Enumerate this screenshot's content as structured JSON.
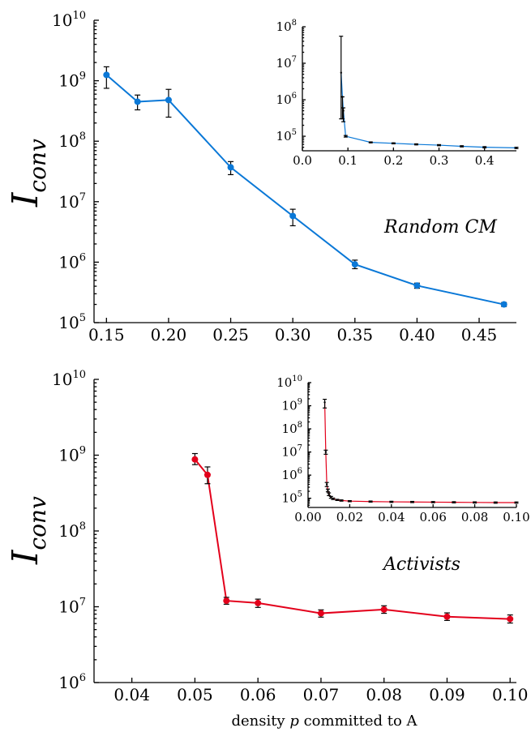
{
  "figure": {
    "xlabel_prefix": "density ",
    "xlabel_var": "p",
    "xlabel_suffix": " committed to A"
  },
  "colors": {
    "top_series": "#0a78d7",
    "bottom_series": "#e3001b",
    "errorbar": "#000000"
  },
  "chart_data": [
    {
      "type": "line",
      "panel": "top-main",
      "ylabel": "I_conv",
      "ylabel_main": "I",
      "ylabel_sub": "conv",
      "annotation": "Random CM",
      "x": [
        0.15,
        0.175,
        0.2,
        0.25,
        0.3,
        0.35,
        0.4,
        0.47
      ],
      "y": [
        1250000000,
        450000000,
        480000000,
        37000000,
        5800000,
        920000,
        410000,
        200000
      ],
      "y_err_low": [
        750000000,
        330000000,
        250000000,
        28000000,
        4000000,
        780000,
        370000,
        185000
      ],
      "y_err_high": [
        1700000000,
        580000000,
        720000000,
        46000000,
        7500000,
        1080000,
        450000,
        215000
      ],
      "xlim": [
        0.14,
        0.48
      ],
      "ylim": [
        100000,
        10000000000
      ],
      "yscale": "log",
      "xticks": [
        "0.15",
        "0.20",
        "0.25",
        "0.30",
        "0.35",
        "0.40",
        "0.45"
      ],
      "yticks": [
        {
          "base": "10",
          "exp": "5"
        },
        {
          "base": "10",
          "exp": "6"
        },
        {
          "base": "10",
          "exp": "7"
        },
        {
          "base": "10",
          "exp": "8"
        },
        {
          "base": "10",
          "exp": "9"
        },
        {
          "base": "10",
          "exp": "10"
        }
      ]
    },
    {
      "type": "line",
      "panel": "top-inset",
      "x": [
        0.085,
        0.088,
        0.09,
        0.095,
        0.15,
        0.2,
        0.25,
        0.3,
        0.35,
        0.4,
        0.47
      ],
      "y": [
        5500000,
        1200000,
        500000,
        100000,
        68000,
        64000,
        60000,
        57000,
        53000,
        50000,
        48000
      ],
      "y_err_low": [
        300000,
        300000,
        250000,
        95000,
        66000,
        62000,
        58000,
        55000,
        51000,
        48000,
        46000
      ],
      "y_err_high": [
        55000000,
        1200000,
        600000,
        105000,
        70000,
        66000,
        62000,
        59000,
        55000,
        52000,
        50000
      ],
      "xlim": [
        0.0,
        0.47
      ],
      "ylim": [
        40000,
        100000000
      ],
      "yscale": "log",
      "xticks": [
        "0.0",
        "0.1",
        "0.2",
        "0.3",
        "0.4"
      ],
      "yticks": [
        {
          "base": "10",
          "exp": "5"
        },
        {
          "base": "10",
          "exp": "6"
        },
        {
          "base": "10",
          "exp": "7"
        },
        {
          "base": "10",
          "exp": "8"
        }
      ]
    },
    {
      "type": "line",
      "panel": "bottom-main",
      "ylabel": "I_conv",
      "ylabel_main": "I",
      "ylabel_sub": "conv",
      "annotation": "Activists",
      "x": [
        0.05,
        0.052,
        0.055,
        0.06,
        0.07,
        0.08,
        0.09,
        0.1
      ],
      "y": [
        880000000,
        550000000,
        12000000,
        11200000,
        8200000,
        9200000,
        7400000,
        6900000
      ],
      "y_err_low": [
        750000000,
        420000000,
        10800000,
        9800000,
        7300000,
        8200000,
        6600000,
        6100000
      ],
      "y_err_high": [
        1050000000,
        700000000,
        13300000,
        12600000,
        9100000,
        10300000,
        8300000,
        7800000
      ],
      "xlim": [
        0.034,
        0.101
      ],
      "ylim": [
        1000000,
        10000000000
      ],
      "yscale": "log",
      "xticks": [
        "0.04",
        "0.05",
        "0.06",
        "0.07",
        "0.08",
        "0.09",
        "0.10"
      ],
      "yticks": [
        {
          "base": "10",
          "exp": "6"
        },
        {
          "base": "10",
          "exp": "7"
        },
        {
          "base": "10",
          "exp": "8"
        },
        {
          "base": "10",
          "exp": "9"
        },
        {
          "base": "10",
          "exp": "10"
        }
      ]
    },
    {
      "type": "line",
      "panel": "bottom-inset",
      "x": [
        0.008,
        0.0085,
        0.009,
        0.0095,
        0.01,
        0.011,
        0.012,
        0.014,
        0.016,
        0.02,
        0.03,
        0.04,
        0.05,
        0.06,
        0.07,
        0.08,
        0.09,
        0.1
      ],
      "y": [
        1400000000,
        10000000,
        400000,
        220000,
        150000,
        110000,
        95000,
        85000,
        80000,
        75000,
        72000,
        70000,
        69000,
        68000,
        67000,
        66000,
        65000,
        65000
      ],
      "y_err_low": [
        800000000,
        8000000,
        320000,
        190000,
        130000,
        100000,
        88000,
        80000,
        75000,
        71000,
        68000,
        66000,
        65000,
        64000,
        63000,
        62000,
        61000,
        61000
      ],
      "y_err_high": [
        1900000000,
        12000000,
        480000,
        250000,
        170000,
        120000,
        102000,
        90000,
        85000,
        79000,
        76000,
        74000,
        73000,
        72000,
        71000,
        70000,
        69000,
        69000
      ],
      "xlim": [
        0.0,
        0.1
      ],
      "ylim": [
        40000,
        10000000000
      ],
      "yscale": "log",
      "xticks": [
        "0.00",
        "0.02",
        "0.04",
        "0.06",
        "0.08",
        "0.10"
      ],
      "yticks": [
        {
          "base": "10",
          "exp": "5"
        },
        {
          "base": "10",
          "exp": "6"
        },
        {
          "base": "10",
          "exp": "7"
        },
        {
          "base": "10",
          "exp": "8"
        },
        {
          "base": "10",
          "exp": "9"
        },
        {
          "base": "10",
          "exp": "10"
        }
      ]
    }
  ]
}
